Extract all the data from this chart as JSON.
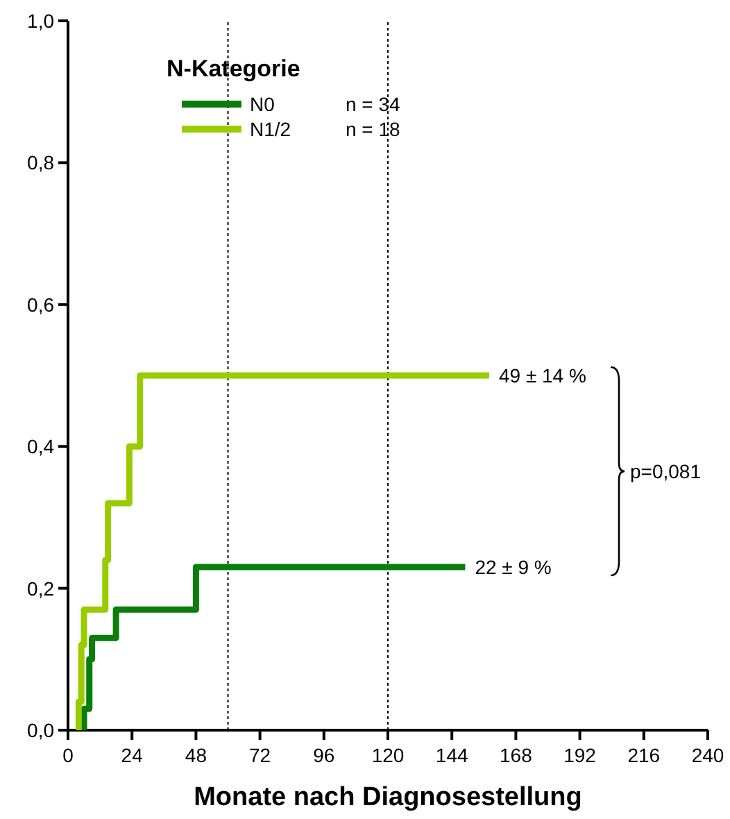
{
  "chart_data": {
    "type": "step",
    "xlabel": "Monate nach Diagnosestellung",
    "legend_title": "N-Kategorie",
    "legend": "top left",
    "xlim": [
      0,
      240
    ],
    "xticks": [
      0,
      24,
      48,
      72,
      96,
      120,
      144,
      168,
      192,
      216,
      240
    ],
    "ylim": [
      0,
      1
    ],
    "yticks": [
      {
        "value": 0,
        "label": "0,0"
      },
      {
        "value": 0.2,
        "label": "0,2"
      },
      {
        "value": 0.4,
        "label": "0,4"
      },
      {
        "value": 0.6,
        "label": "0,6"
      },
      {
        "value": 0.8,
        "label": "0,8"
      },
      {
        "value": 1,
        "label": "1,0"
      }
    ],
    "series": [
      {
        "name": "N0",
        "color": "#0a7d0a",
        "x": [
          6,
          6,
          8,
          9,
          18,
          48,
          149
        ],
        "values": [
          0,
          0.03,
          0.1,
          0.13,
          0.17,
          0.23,
          0.23
        ]
      },
      {
        "name": "N1/2",
        "color": "#99cc00",
        "x": [
          4,
          4,
          5,
          6,
          14,
          15,
          23,
          27,
          158
        ],
        "values": [
          0,
          0.04,
          0.12,
          0.17,
          0.24,
          0.32,
          0.4,
          0.5,
          0.5
        ]
      }
    ],
    "ref_lines": [
      {
        "axis": "x",
        "value": 60,
        "line_style": "dotted"
      },
      {
        "axis": "x",
        "value": 120,
        "line_style": "dotted"
      }
    ],
    "annotations": [
      "n = 34",
      "n = 18",
      {
        "text": "49 ± 14 %",
        "x": 158,
        "y": 0.5
      },
      {
        "text": "22 ± 9 %",
        "x": 149,
        "y": 0.23
      },
      "p=0,081"
    ]
  }
}
